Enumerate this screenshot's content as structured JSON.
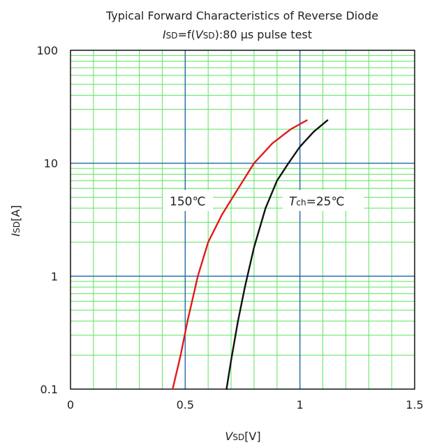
{
  "chart_data": {
    "type": "line",
    "title": "Typical Forward Characteristics of Reverse Diode",
    "subtitle": {
      "symbol": "I",
      "symbol_sub": "SD",
      "mid": "=f(",
      "arg": "V",
      "arg_sub": "SD",
      "rest": "):80 μs pulse test"
    },
    "xlabel": {
      "symbol": "V",
      "sub": "SD",
      "unit": "[V]"
    },
    "ylabel": {
      "symbol": "I",
      "sub": "SD",
      "unit": "[A]"
    },
    "xlim": [
      0,
      1.5
    ],
    "ylim": [
      0.1,
      100
    ],
    "yscale": "log",
    "x_ticks": [
      {
        "value": 0,
        "label": "0"
      },
      {
        "value": 0.5,
        "label": "0.5"
      },
      {
        "value": 1,
        "label": "1"
      },
      {
        "value": 1.5,
        "label": "1.5"
      }
    ],
    "y_ticks": [
      {
        "value": 0.1,
        "label": "0.1"
      },
      {
        "value": 1,
        "label": "1"
      },
      {
        "value": 10,
        "label": "10"
      },
      {
        "value": 100,
        "label": "100"
      }
    ],
    "grid": true,
    "series": [
      {
        "label_text": "150℃",
        "color": "#e31a1c",
        "x": [
          0.445,
          0.48,
          0.51,
          0.555,
          0.6,
          0.66,
          0.72,
          0.8,
          0.88,
          0.96,
          1.03
        ],
        "y": [
          0.1,
          0.2,
          0.4,
          1,
          2,
          3.5,
          5.5,
          10,
          15,
          20,
          24
        ]
      },
      {
        "label_symbol": "T",
        "label_sub": "ch",
        "label_rest": "=25℃",
        "color": "#111111",
        "x": [
          0.68,
          0.7,
          0.73,
          0.76,
          0.8,
          0.85,
          0.9,
          0.95,
          1.0,
          1.06,
          1.12
        ],
        "y": [
          0.1,
          0.18,
          0.4,
          0.8,
          1.8,
          4,
          7,
          10,
          14,
          19,
          24
        ]
      }
    ],
    "colors": {
      "minor_grid": "#5ee35e",
      "major_grid": "#2e6ea6",
      "frame": "#000000"
    }
  }
}
